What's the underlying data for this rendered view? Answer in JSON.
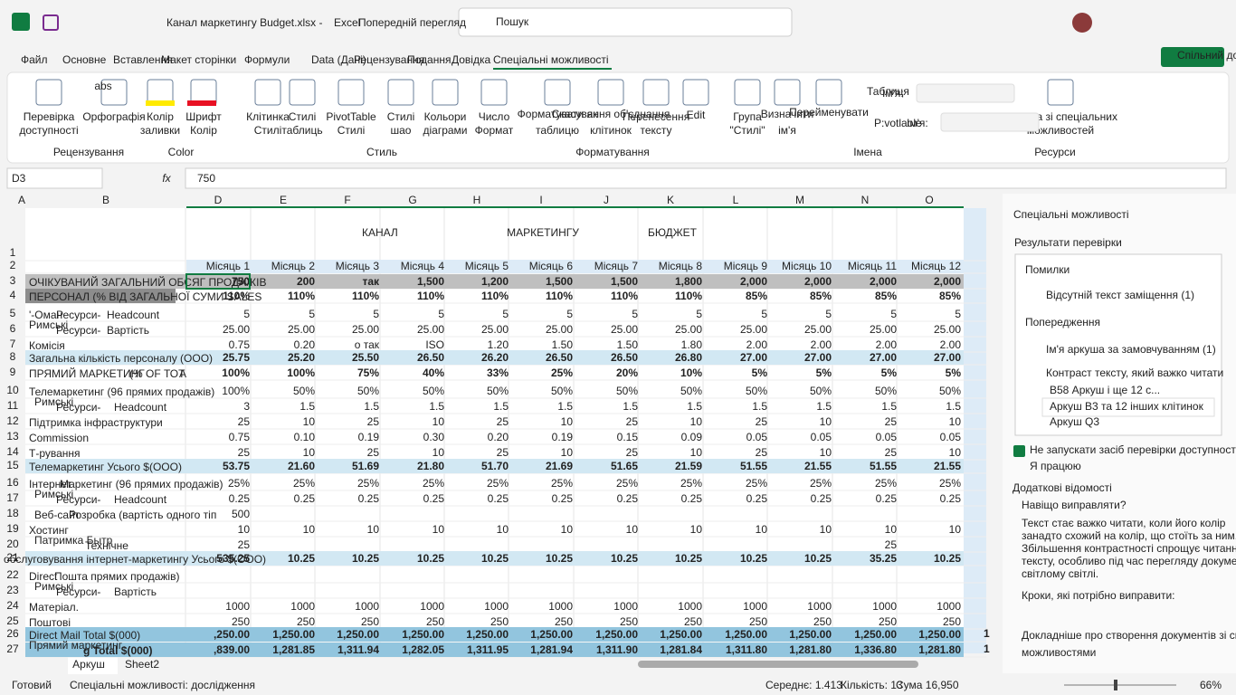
{
  "title_bar": {
    "file_name": "Канал маркетингу Budget.xlsx -",
    "app": "Excel",
    "preview": "Попередній перегляд",
    "search": "Пошук"
  },
  "menu": {
    "tabs": [
      "Файл",
      "Основне",
      "Вставлення",
      "Макет сторінки",
      "Формули",
      "Data (Дані)",
      "Рецензування",
      "Подання",
      "Довідка",
      "Спеціальні можливості"
    ],
    "share": "Спільний дост"
  },
  "ribbon": {
    "buttons": [
      [
        "Перевірка",
        "доступності"
      ],
      [
        "Орфографія"
      ],
      [
        "Колір",
        "заливки"
      ],
      [
        "Шрифт",
        "Колір"
      ],
      [
        "Клітинка",
        "Стилі"
      ],
      [
        "Стилі",
        "таблиць"
      ],
      [
        "PivotTable",
        "Стилі"
      ],
      [
        "Стилі",
        "шао"
      ],
      [
        "Кольори",
        "діаграми"
      ],
      [
        "Число",
        "Формат"
      ],
      [
        "Форматувати як",
        "таблицю"
      ],
      [
        "Скасування об'єднання",
        "клітинок"
      ],
      [
        "Перенесення",
        "тексту"
      ],
      [
        "Edit"
      ],
      [
        "Група",
        "\"Стилі\""
      ],
      [
        "Визначити",
        "ім'я"
      ],
      [
        "Перейменувати"
      ],
      [
        "Таблиця"
      ],
      [
        "P:votlaole"
      ],
      [
        "Довідка зі спеціальних",
        "можливостей"
      ]
    ],
    "small": [
      "abs",
      "Ім'я:",
      "Ім'я:"
    ],
    "groups": [
      "Рецензування",
      "Color",
      "Стиль",
      "Форматування",
      "Імена",
      "Ресурси"
    ]
  },
  "formula_bar": {
    "name_box": "D3",
    "fx": "fx",
    "value": "750"
  },
  "columns": [
    "A",
    "B",
    "D",
    "E",
    "F",
    "G",
    "H",
    "I",
    "J",
    "K",
    "L",
    "M",
    "N",
    "O"
  ],
  "row_numbers": [
    "1",
    "2",
    "3",
    "4",
    "5",
    "6",
    "7",
    "8",
    "9",
    "10",
    "11",
    "12",
    "13",
    "14",
    "15",
    "16",
    "17",
    "18",
    "19",
    "20",
    "21",
    "22",
    "23",
    "24",
    "25",
    "26",
    "27"
  ],
  "sheet": {
    "title": [
      "КАНАЛ",
      "МАРКЕТИНГУ",
      "БЮДЖЕТ"
    ],
    "months": [
      "Місяць 1",
      "Місяць 2",
      "Місяць 3",
      "Місяць 4",
      "Місяць 5",
      "Місяць 6",
      "Місяць 7",
      "Місяць 8",
      "Місяць 9",
      "Місяць 10",
      "Місяць 11",
      "Місяць 12"
    ],
    "rows": [
      {
        "labels": [
          "ОЧІКУВАНИЙ ЗАГАЛЬНИЙ ОБСЯГ ПРОДАЖІВ"
        ],
        "values": [
          "750",
          "200",
          "так",
          "1,500",
          "1,200",
          "1,500",
          "1,500",
          "1,800",
          "2,000",
          "2,000",
          "2,000",
          "2,000"
        ]
      },
      {
        "labels": [
          "ПЕРСОНАЛ (% ВІД ЗАГАЛЬНОЇ СУМИ SALES"
        ],
        "values": [
          "110%",
          "110%",
          "110%",
          "110%",
          "110%",
          "110%",
          "110%",
          "110%",
          "85%",
          "85%",
          "85%",
          "85%"
        ]
      },
      {
        "labels": [
          "'-Оман",
          "Ресурси-",
          "Headcount"
        ],
        "values": [
          "5",
          "5",
          "5",
          "5",
          "5",
          "5",
          "5",
          "5",
          "5",
          "5",
          "5",
          "5"
        ]
      },
      {
        "labels": [
          "Римські",
          "Ресурси-",
          "Вартість"
        ],
        "values": [
          "25.00",
          "25.00",
          "25.00",
          "25.00",
          "25.00",
          "25.00",
          "25.00",
          "25.00",
          "25.00",
          "25.00",
          "25.00",
          "25.00"
        ]
      },
      {
        "labels": [
          "Комісія"
        ],
        "values": [
          "0.75",
          "0.20",
          "о так",
          "ISO",
          "1.20",
          "1.50",
          "1.50",
          "1.80",
          "2.00",
          "2.00",
          "2.00",
          "2.00"
        ]
      },
      {
        "labels": [
          "Загальна кількість персоналу (ООО)"
        ],
        "values": [
          "25.75",
          "25.20",
          "25.50",
          "26.50",
          "26.20",
          "26.50",
          "26.50",
          "26.80",
          "27.00",
          "27.00",
          "27.00",
          "27.00"
        ]
      },
      {
        "labels": [
          "ПРЯМИЙ МАРКЕТИНГ",
          "(% OF ТОТ",
          "A"
        ],
        "values": [
          "100%",
          "100%",
          "75%",
          "40%",
          "33%",
          "25%",
          "20%",
          "10%",
          "5%",
          "5%",
          "5%",
          "5%"
        ]
      },
      {
        "labels": [
          "Телемаркетинг (96 прямих продажів)"
        ],
        "values": [
          "100%",
          "50%",
          "50%",
          "50%",
          "50%",
          "50%",
          "50%",
          "50%",
          "50%",
          "50%",
          "50%",
          "50%"
        ]
      },
      {
        "labels": [
          "Римські",
          "Ресурси-",
          "Headcount"
        ],
        "values": [
          "3",
          "1.5",
          "1.5",
          "1.5",
          "1.5",
          "1.5",
          "1.5",
          "1.5",
          "1.5",
          "1.5",
          "1.5",
          "1.5"
        ]
      },
      {
        "labels": [
          "Підтримка інфраструктури"
        ],
        "values": [
          "25",
          "10",
          "25",
          "10",
          "25",
          "10",
          "25",
          "10",
          "25",
          "10",
          "25",
          "10"
        ]
      },
      {
        "labels": [
          "Commission"
        ],
        "values": [
          "0.75",
          "0.10",
          "0.19",
          "0.30",
          "0.20",
          "0.19",
          "0.15",
          "0.09",
          "0.05",
          "0.05",
          "0.05",
          "0.05"
        ]
      },
      {
        "labels": [
          "Т-рування"
        ],
        "values": [
          "25",
          "10",
          "25",
          "10",
          "25",
          "10",
          "25",
          "10",
          "25",
          "10",
          "25",
          "10"
        ]
      },
      {
        "labels": [
          "Телемаркетинг Усього $(ООО)"
        ],
        "values": [
          "53.75",
          "21.60",
          "51.69",
          "21.80",
          "51.70",
          "21.69",
          "51.65",
          "21.59",
          "51.55",
          "21.55",
          "51.55",
          "21.55"
        ]
      },
      {
        "labels": [
          "Інтернет",
          "Маркетинг (96 прямих продажів)"
        ],
        "values": [
          "25%",
          "25%",
          "25%",
          "25%",
          "25%",
          "25%",
          "25%",
          "25%",
          "25%",
          "25%",
          "25%",
          "25%"
        ]
      },
      {
        "labels": [
          "Римські",
          "Ресурси-",
          "Headcount"
        ],
        "values": [
          "0.25",
          "0.25",
          "0.25",
          "0.25",
          "0.25",
          "0.25",
          "0.25",
          "0.25",
          "0.25",
          "0.25",
          "0.25",
          "0.25"
        ]
      },
      {
        "labels": [
          "Веб-сайт",
          "Розробка (вартість одного тіп"
        ],
        "values": [
          "500",
          null,
          null,
          null,
          null,
          null,
          null,
          null,
          null,
          null,
          null,
          null
        ]
      },
      {
        "labels": [
          "Хостинг"
        ],
        "values": [
          "10",
          "10",
          "10",
          "10",
          "10",
          "10",
          "10",
          "10",
          "10",
          "10",
          "10",
          "10"
        ]
      },
      {
        "labels": [
          "Патримка Бытр",
          "Технічне"
        ],
        "values": [
          "25",
          null,
          null,
          null,
          null,
          null,
          null,
          null,
          null,
          null,
          "25",
          null
        ]
      },
      {
        "labels": [
          "обслуговування інтернет-маркетингу Усього $(ООО)"
        ],
        "values": [
          "535.25",
          "10.25",
          "10.25",
          "10.25",
          "10.25",
          "10.25",
          "10.25",
          "10.25",
          "10.25",
          "10.25",
          "35.25",
          "10.25"
        ]
      },
      {
        "labels": [
          "Direct",
          "Пошта прямих продажів)"
        ],
        "values": [
          null,
          null,
          null,
          null,
          null,
          null,
          null,
          null,
          null,
          null,
          null,
          null
        ]
      },
      {
        "labels": [
          "Римські",
          "Ресурси-",
          "Вартість"
        ],
        "values": [
          null,
          null,
          null,
          null,
          null,
          null,
          null,
          null,
          null,
          null,
          null,
          null
        ]
      },
      {
        "labels": [
          "Матеріал."
        ],
        "values": [
          "1000",
          "1000",
          "1000",
          "1000",
          "1000",
          "1000",
          "1000",
          "1000",
          "1000",
          "1000",
          "1000",
          "1000"
        ]
      },
      {
        "labels": [
          "Поштові"
        ],
        "values": [
          "250",
          "250",
          "250",
          "250",
          "250",
          "250",
          "250",
          "250",
          "250",
          "250",
          "250",
          "250"
        ]
      },
      {
        "labels": [
          "Direct Mail Total $(000)"
        ],
        "values": [
          ",250.00",
          "1,250.00",
          "1,250.00",
          "1,250.00",
          "1,250.00",
          "1,250.00",
          "1,250.00",
          "1,250.00",
          "1,250.00",
          "1,250.00",
          "1,250.00",
          "1,250.00"
        ],
        "extra": "1"
      },
      {
        "labels": [
          "Прямий маркетинг",
          "g Total $(000)"
        ],
        "values": [
          ",839.00",
          "1,281.85",
          "1,311.94",
          "1,282.05",
          "1,311.95",
          "1,281.94",
          "1,311.90",
          "1,281.84",
          "1,311.80",
          "1,281.80",
          "1,336.80",
          "1,281.80"
        ],
        "extra": "1"
      }
    ]
  },
  "sheet_tabs": [
    "Аркуш",
    "Sheet2"
  ],
  "pane": {
    "title": "Спеціальні можливості",
    "results": "Результати перевірки",
    "errors": "Помилки",
    "error_items": [
      "Відсутній текст заміщення (1)"
    ],
    "warnings": "Попередження",
    "warning_items": [
      "Ім'я аркуша за замовчуванням (1)",
      "Контраст тексту, який важко читати"
    ],
    "sub_items": [
      "B58 Аркуш і ще 12 с...",
      "Аркуш B3 та 12 інших клітинок",
      "Аркуш Q3"
    ],
    "checkbox": "Не запускати засіб перевірки доступності під час роботи",
    "working": "Я працюю",
    "more_info": "Додаткові відомості",
    "why": "Навіщо виправляти?",
    "why_text": [
      "Текст стає важко читати, коли його колір",
      "занадто схожий на колір, що стоїть за ним.",
      "Збільшення контрастності спрощує читання",
      "тексту, особливо під час перегляду документів у",
      "світлому світлі."
    ],
    "steps": "Кроки, які потрібно виправити:",
    "learn_more": [
      "Докладніше про створення документів зі спеціальними",
      "можливостями"
    ]
  },
  "status_bar": {
    "ready": "Готовий",
    "accessibility": "Спеціальні можливості: дослідження",
    "average": "Середнє: 1.413",
    "count": "Кількість: 13",
    "sum": "Сума 16,950",
    "zoom": "66%"
  }
}
